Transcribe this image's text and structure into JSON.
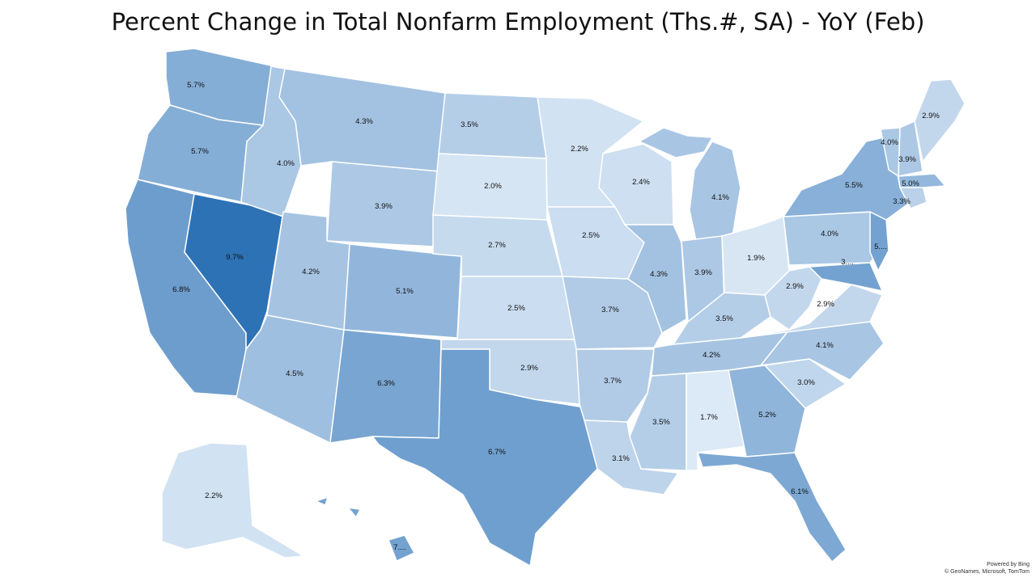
{
  "title": "Percent Change in Total Nonfarm Employment (Ths.#, SA) - YoY (Feb)",
  "attribution": {
    "line1": "Powered by Bing",
    "line2": "© GeoNames, Microsoft, TomTom"
  },
  "color_scale": {
    "low": "#dce9f6",
    "high": "#2e72b6"
  },
  "states": [
    {
      "id": "WA",
      "label": "5.7%",
      "value": 5.7
    },
    {
      "id": "OR",
      "label": "5.7%",
      "value": 5.7
    },
    {
      "id": "CA",
      "label": "6.8%",
      "value": 6.8
    },
    {
      "id": "NV",
      "label": "9.7%",
      "value": 9.7
    },
    {
      "id": "ID",
      "label": "4.0%",
      "value": 4.0
    },
    {
      "id": "MT",
      "label": "4.3%",
      "value": 4.3
    },
    {
      "id": "WY",
      "label": "3.9%",
      "value": 3.9
    },
    {
      "id": "UT",
      "label": "4.2%",
      "value": 4.2
    },
    {
      "id": "AZ",
      "label": "4.5%",
      "value": 4.5
    },
    {
      "id": "CO",
      "label": "5.1%",
      "value": 5.1
    },
    {
      "id": "NM",
      "label": "6.3%",
      "value": 6.3
    },
    {
      "id": "ND",
      "label": "3.5%",
      "value": 3.5
    },
    {
      "id": "SD",
      "label": "2.0%",
      "value": 2.0
    },
    {
      "id": "NE",
      "label": "2.7%",
      "value": 2.7
    },
    {
      "id": "KS",
      "label": "2.5%",
      "value": 2.5
    },
    {
      "id": "OK",
      "label": "2.9%",
      "value": 2.9
    },
    {
      "id": "TX",
      "label": "6.7%",
      "value": 6.7
    },
    {
      "id": "MN",
      "label": "2.2%",
      "value": 2.2
    },
    {
      "id": "IA",
      "label": "2.5%",
      "value": 2.5
    },
    {
      "id": "MO",
      "label": "3.7%",
      "value": 3.7
    },
    {
      "id": "AR",
      "label": "3.7%",
      "value": 3.7
    },
    {
      "id": "LA",
      "label": "3.1%",
      "value": 3.1
    },
    {
      "id": "WI",
      "label": "2.4%",
      "value": 2.4
    },
    {
      "id": "IL",
      "label": "4.3%",
      "value": 4.3
    },
    {
      "id": "MI",
      "label": "4.1%",
      "value": 4.1
    },
    {
      "id": "IN",
      "label": "3.9%",
      "value": 3.9
    },
    {
      "id": "OH",
      "label": "1.9%",
      "value": 1.9
    },
    {
      "id": "KY",
      "label": "3.5%",
      "value": 3.5
    },
    {
      "id": "TN",
      "label": "4.2%",
      "value": 4.2
    },
    {
      "id": "MS",
      "label": "3.5%",
      "value": 3.5
    },
    {
      "id": "AL",
      "label": "1.7%",
      "value": 1.7
    },
    {
      "id": "GA",
      "label": "5.2%",
      "value": 5.2
    },
    {
      "id": "FL",
      "label": "6.1%",
      "value": 6.1
    },
    {
      "id": "SC",
      "label": "3.0%",
      "value": 3.0
    },
    {
      "id": "NC",
      "label": "4.1%",
      "value": 4.1
    },
    {
      "id": "VA",
      "label": "2.9%",
      "value": 2.9
    },
    {
      "id": "WV",
      "label": "2.9%",
      "value": 2.9
    },
    {
      "id": "PA",
      "label": "4.0%",
      "value": 4.0
    },
    {
      "id": "NY",
      "label": "5.5%",
      "value": 5.5
    },
    {
      "id": "NJ",
      "label": "5....",
      "value": null
    },
    {
      "id": "MD",
      "label": "3....",
      "value": null
    },
    {
      "id": "CT",
      "label": "3.3%",
      "value": 3.3
    },
    {
      "id": "MA",
      "label": "5.0%",
      "value": 5.0
    },
    {
      "id": "VT",
      "label": "4.0%",
      "value": 4.0
    },
    {
      "id": "NH",
      "label": "3.9%",
      "value": 3.9
    },
    {
      "id": "ME",
      "label": "2.9%",
      "value": 2.9
    },
    {
      "id": "AK",
      "label": "2.2%",
      "value": 2.2
    },
    {
      "id": "HI",
      "label": "7....",
      "value": null
    }
  ]
}
